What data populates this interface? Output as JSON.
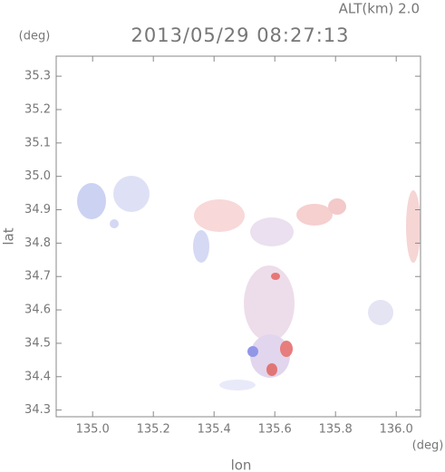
{
  "chart_data": {
    "type": "map",
    "title": "2013/05/29 08:27:13",
    "subtitle": "ALT(km) 2.0",
    "x_label": "lon",
    "y_label": "lat",
    "x_unit": "(deg)",
    "y_unit": "(deg)",
    "xlim": [
      134.88,
      136.08
    ],
    "xticks": [
      {
        "value": 135.0,
        "label": "135.0"
      },
      {
        "value": 135.2,
        "label": "135.2"
      },
      {
        "value": 135.4,
        "label": "135.4"
      },
      {
        "value": 135.6,
        "label": "135.6"
      },
      {
        "value": 135.8,
        "label": "135.8"
      },
      {
        "value": 136.0,
        "label": "136.0"
      }
    ],
    "ylim": [
      34.28,
      35.36
    ],
    "yticks": [
      {
        "value": 34.3,
        "label": "34.3"
      },
      34.4,
      34.5,
      34.6,
      34.7,
      34.8,
      34.9,
      {
        "value": 35.0,
        "label": "35.0"
      },
      35.1,
      35.2,
      35.3
    ]
  }
}
